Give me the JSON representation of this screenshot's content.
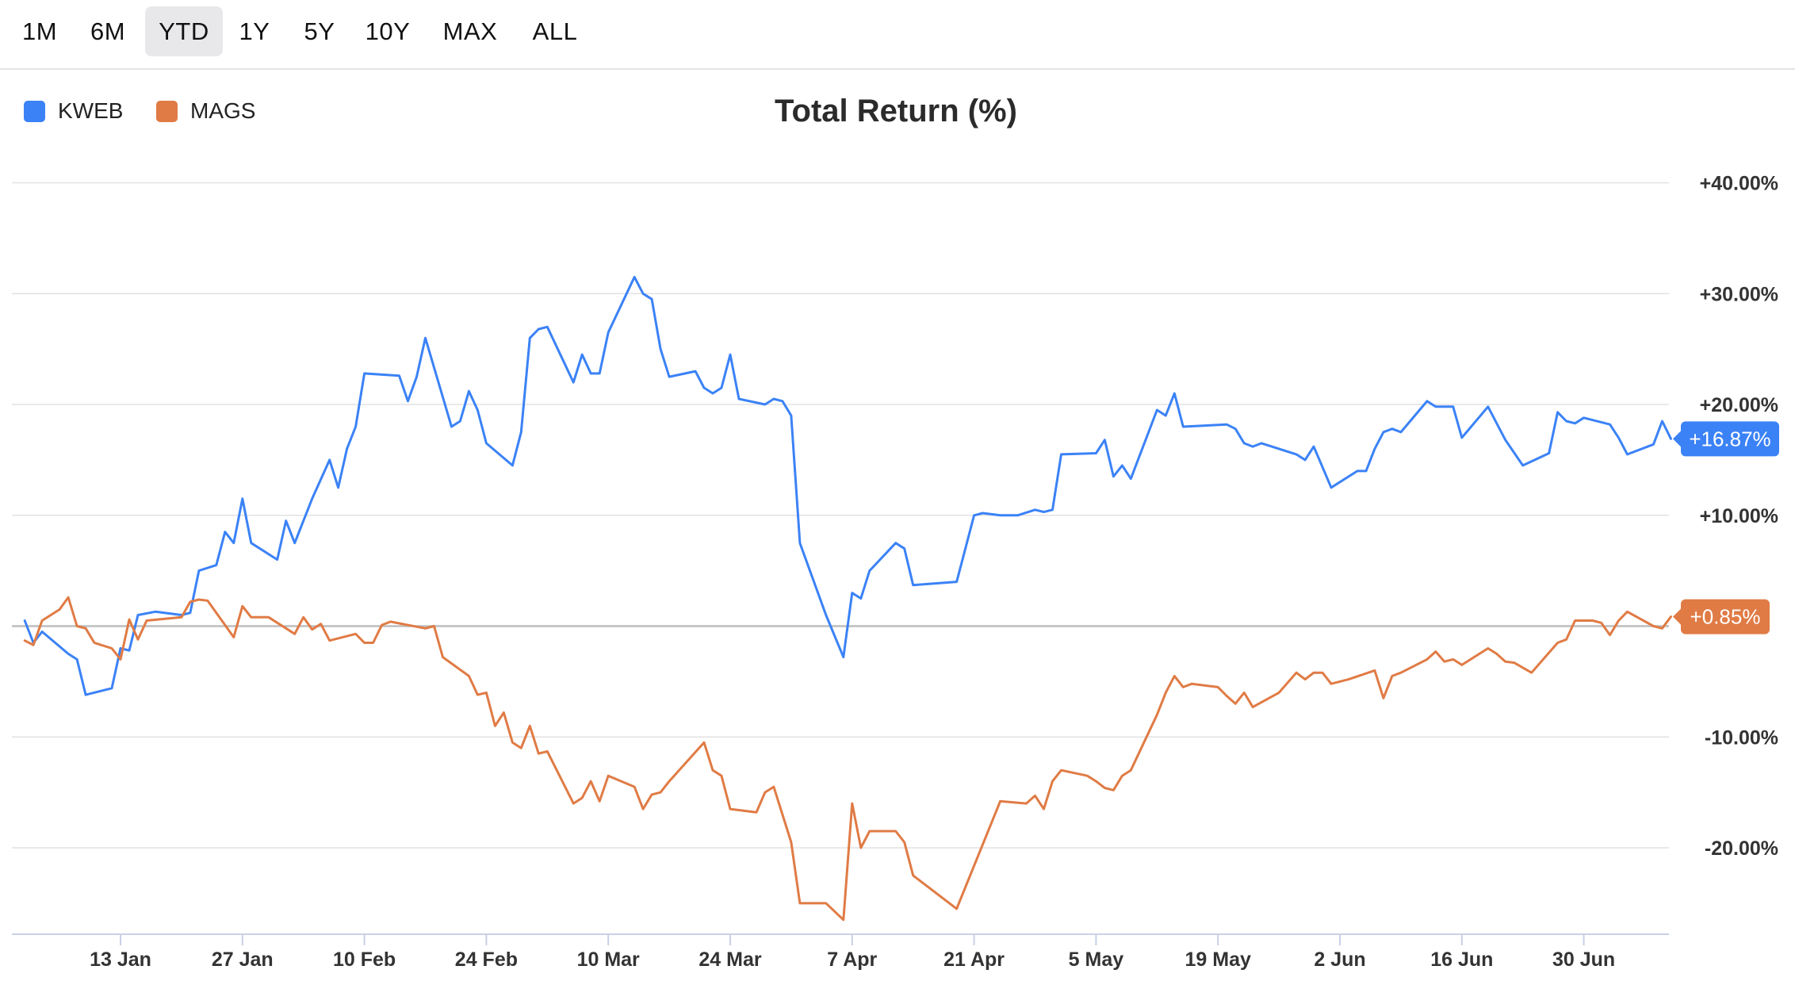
{
  "range_buttons": [
    {
      "label": "1M",
      "active": false
    },
    {
      "label": "6M",
      "active": false
    },
    {
      "label": "YTD",
      "active": true
    },
    {
      "label": "1Y",
      "active": false
    },
    {
      "label": "5Y",
      "active": false
    },
    {
      "label": "10Y",
      "active": false
    },
    {
      "label": "MAX",
      "active": false
    },
    {
      "label": "ALL",
      "active": false
    }
  ],
  "legend": [
    {
      "name": "KWEB",
      "color": "#3b82f6"
    },
    {
      "name": "MAGS",
      "color": "#e07b45"
    }
  ],
  "chart_data": {
    "type": "line",
    "title": "Total Return (%)",
    "xlabel": "",
    "ylabel": "",
    "ylim": [
      -27,
      40
    ],
    "y_ticks": [
      {
        "value": 40,
        "label": "+40.00%"
      },
      {
        "value": 30,
        "label": "+30.00%"
      },
      {
        "value": 20,
        "label": "+20.00%"
      },
      {
        "value": 10,
        "label": "+10.00%"
      },
      {
        "value": -10,
        "label": "-10.00%"
      },
      {
        "value": -20,
        "label": "-20.00%"
      }
    ],
    "x_range": [
      "2025-01-02",
      "2025-07-08"
    ],
    "x_ticks": [
      {
        "date": "2025-01-13",
        "label": "13 Jan"
      },
      {
        "date": "2025-01-27",
        "label": "27 Jan"
      },
      {
        "date": "2025-02-10",
        "label": "10 Feb"
      },
      {
        "date": "2025-02-24",
        "label": "24 Feb"
      },
      {
        "date": "2025-03-10",
        "label": "10 Mar"
      },
      {
        "date": "2025-03-24",
        "label": "24 Mar"
      },
      {
        "date": "2025-04-07",
        "label": "7 Apr"
      },
      {
        "date": "2025-04-21",
        "label": "21 Apr"
      },
      {
        "date": "2025-05-05",
        "label": "5 May"
      },
      {
        "date": "2025-05-19",
        "label": "19 May"
      },
      {
        "date": "2025-06-02",
        "label": "2 Jun"
      },
      {
        "date": "2025-06-16",
        "label": "16 Jun"
      },
      {
        "date": "2025-06-30",
        "label": "30 Jun"
      }
    ],
    "zero_line": true,
    "grid": true,
    "legend_position": "top-left",
    "series": [
      {
        "name": "KWEB",
        "color": "#3b82f6",
        "last_value_label": "+16.87%",
        "points": [
          [
            "2025-01-02",
            0.5
          ],
          [
            "2025-01-03",
            -1.5
          ],
          [
            "2025-01-04",
            -0.5
          ],
          [
            "2025-01-07",
            -2.5
          ],
          [
            "2025-01-08",
            -3.0
          ],
          [
            "2025-01-09",
            -6.2
          ],
          [
            "2025-01-12",
            -5.6
          ],
          [
            "2025-01-13",
            -2.0
          ],
          [
            "2025-01-14",
            -2.2
          ],
          [
            "2025-01-15",
            1.0
          ],
          [
            "2025-01-17",
            1.3
          ],
          [
            "2025-01-20",
            1.0
          ],
          [
            "2025-01-21",
            1.2
          ],
          [
            "2025-01-22",
            5.0
          ],
          [
            "2025-01-24",
            5.5
          ],
          [
            "2025-01-25",
            8.5
          ],
          [
            "2025-01-26",
            7.5
          ],
          [
            "2025-01-27",
            11.5
          ],
          [
            "2025-01-28",
            7.5
          ],
          [
            "2025-01-31",
            6.0
          ],
          [
            "2025-02-01",
            9.5
          ],
          [
            "2025-02-02",
            7.5
          ],
          [
            "2025-02-04",
            11.5
          ],
          [
            "2025-02-06",
            15.0
          ],
          [
            "2025-02-07",
            12.5
          ],
          [
            "2025-02-08",
            16.0
          ],
          [
            "2025-02-09",
            18.0
          ],
          [
            "2025-02-10",
            22.8
          ],
          [
            "2025-02-14",
            22.6
          ],
          [
            "2025-02-15",
            20.3
          ],
          [
            "2025-02-16",
            22.5
          ],
          [
            "2025-02-17",
            26.0
          ],
          [
            "2025-02-20",
            18.0
          ],
          [
            "2025-02-21",
            18.5
          ],
          [
            "2025-02-22",
            21.2
          ],
          [
            "2025-02-23",
            19.5
          ],
          [
            "2025-02-24",
            16.5
          ],
          [
            "2025-02-27",
            14.5
          ],
          [
            "2025-02-28",
            17.5
          ],
          [
            "2025-03-01",
            26.0
          ],
          [
            "2025-03-02",
            26.8
          ],
          [
            "2025-03-03",
            27.0
          ],
          [
            "2025-03-06",
            22.0
          ],
          [
            "2025-03-07",
            24.5
          ],
          [
            "2025-03-08",
            22.8
          ],
          [
            "2025-03-09",
            22.8
          ],
          [
            "2025-03-10",
            26.5
          ],
          [
            "2025-03-13",
            31.5
          ],
          [
            "2025-03-14",
            30.0
          ],
          [
            "2025-03-15",
            29.5
          ],
          [
            "2025-03-16",
            25.0
          ],
          [
            "2025-03-17",
            22.5
          ],
          [
            "2025-03-20",
            23.0
          ],
          [
            "2025-03-21",
            21.5
          ],
          [
            "2025-03-22",
            21.0
          ],
          [
            "2025-03-23",
            21.5
          ],
          [
            "2025-03-24",
            24.5
          ],
          [
            "2025-03-25",
            20.5
          ],
          [
            "2025-03-28",
            20.0
          ],
          [
            "2025-03-29",
            20.5
          ],
          [
            "2025-03-30",
            20.3
          ],
          [
            "2025-03-31",
            19.0
          ],
          [
            "2025-04-01",
            7.5
          ],
          [
            "2025-04-04",
            1.0
          ],
          [
            "2025-04-06",
            -2.8
          ],
          [
            "2025-04-07",
            3.0
          ],
          [
            "2025-04-08",
            2.5
          ],
          [
            "2025-04-09",
            5.0
          ],
          [
            "2025-04-12",
            7.5
          ],
          [
            "2025-04-13",
            7.0
          ],
          [
            "2025-04-14",
            3.7
          ],
          [
            "2025-04-19",
            4.0
          ],
          [
            "2025-04-20",
            7.0
          ],
          [
            "2025-04-21",
            10.0
          ],
          [
            "2025-04-22",
            10.2
          ],
          [
            "2025-04-24",
            10.0
          ],
          [
            "2025-04-26",
            10.0
          ],
          [
            "2025-04-28",
            10.5
          ],
          [
            "2025-04-29",
            10.3
          ],
          [
            "2025-04-30",
            10.5
          ],
          [
            "2025-05-01",
            15.5
          ],
          [
            "2025-05-05",
            15.6
          ],
          [
            "2025-05-06",
            16.8
          ],
          [
            "2025-05-07",
            13.5
          ],
          [
            "2025-05-08",
            14.5
          ],
          [
            "2025-05-09",
            13.3
          ],
          [
            "2025-05-12",
            19.5
          ],
          [
            "2025-05-13",
            19.0
          ],
          [
            "2025-05-14",
            21.0
          ],
          [
            "2025-05-15",
            18.0
          ],
          [
            "2025-05-20",
            18.2
          ],
          [
            "2025-05-21",
            17.8
          ],
          [
            "2025-05-22",
            16.5
          ],
          [
            "2025-05-23",
            16.2
          ],
          [
            "2025-05-24",
            16.5
          ],
          [
            "2025-05-28",
            15.5
          ],
          [
            "2025-05-29",
            15.0
          ],
          [
            "2025-05-30",
            16.2
          ],
          [
            "2025-06-01",
            12.5
          ],
          [
            "2025-06-04",
            14.0
          ],
          [
            "2025-06-05",
            14.0
          ],
          [
            "2025-06-06",
            16.0
          ],
          [
            "2025-06-07",
            17.5
          ],
          [
            "2025-06-08",
            17.8
          ],
          [
            "2025-06-09",
            17.5
          ],
          [
            "2025-06-12",
            20.3
          ],
          [
            "2025-06-13",
            19.8
          ],
          [
            "2025-06-15",
            19.8
          ],
          [
            "2025-06-16",
            17.0
          ],
          [
            "2025-06-19",
            19.8
          ],
          [
            "2025-06-21",
            16.8
          ],
          [
            "2025-06-23",
            14.5
          ],
          [
            "2025-06-26",
            15.6
          ],
          [
            "2025-06-27",
            19.3
          ],
          [
            "2025-06-28",
            18.5
          ],
          [
            "2025-06-29",
            18.3
          ],
          [
            "2025-06-30",
            18.8
          ],
          [
            "2025-07-03",
            18.2
          ],
          [
            "2025-07-04",
            17.0
          ],
          [
            "2025-07-05",
            15.5
          ],
          [
            "2025-07-08",
            16.4
          ],
          [
            "2025-07-09",
            18.5
          ],
          [
            "2025-07-10",
            16.9
          ]
        ]
      },
      {
        "name": "MAGS",
        "color": "#e07b45",
        "last_value_label": "+0.85%",
        "points": [
          [
            "2025-01-02",
            -1.3
          ],
          [
            "2025-01-03",
            -1.7
          ],
          [
            "2025-01-04",
            0.5
          ],
          [
            "2025-01-06",
            1.5
          ],
          [
            "2025-01-07",
            2.6
          ],
          [
            "2025-01-08",
            0.0
          ],
          [
            "2025-01-09",
            -0.2
          ],
          [
            "2025-01-10",
            -1.5
          ],
          [
            "2025-01-12",
            -2.0
          ],
          [
            "2025-01-13",
            -3.0
          ],
          [
            "2025-01-14",
            0.6
          ],
          [
            "2025-01-15",
            -1.2
          ],
          [
            "2025-01-16",
            0.5
          ],
          [
            "2025-01-20",
            0.8
          ],
          [
            "2025-01-21",
            2.2
          ],
          [
            "2025-01-22",
            2.4
          ],
          [
            "2025-01-23",
            2.3
          ],
          [
            "2025-01-26",
            -1.0
          ],
          [
            "2025-01-27",
            1.8
          ],
          [
            "2025-01-28",
            0.8
          ],
          [
            "2025-01-30",
            0.8
          ],
          [
            "2025-02-02",
            -0.7
          ],
          [
            "2025-02-03",
            0.8
          ],
          [
            "2025-02-04",
            -0.3
          ],
          [
            "2025-02-05",
            0.2
          ],
          [
            "2025-02-06",
            -1.3
          ],
          [
            "2025-02-09",
            -0.7
          ],
          [
            "2025-02-10",
            -1.5
          ],
          [
            "2025-02-11",
            -1.5
          ],
          [
            "2025-02-12",
            0.1
          ],
          [
            "2025-02-13",
            0.4
          ],
          [
            "2025-02-17",
            -0.2
          ],
          [
            "2025-02-18",
            0.0
          ],
          [
            "2025-02-19",
            -2.8
          ],
          [
            "2025-02-22",
            -4.5
          ],
          [
            "2025-02-23",
            -6.2
          ],
          [
            "2025-02-24",
            -6.0
          ],
          [
            "2025-02-25",
            -9.0
          ],
          [
            "2025-02-26",
            -7.8
          ],
          [
            "2025-02-27",
            -10.5
          ],
          [
            "2025-02-28",
            -11.0
          ],
          [
            "2025-03-01",
            -9.0
          ],
          [
            "2025-03-02",
            -11.5
          ],
          [
            "2025-03-03",
            -11.3
          ],
          [
            "2025-03-06",
            -16.0
          ],
          [
            "2025-03-07",
            -15.5
          ],
          [
            "2025-03-08",
            -14.0
          ],
          [
            "2025-03-09",
            -15.8
          ],
          [
            "2025-03-10",
            -13.5
          ],
          [
            "2025-03-13",
            -14.5
          ],
          [
            "2025-03-14",
            -16.5
          ],
          [
            "2025-03-15",
            -15.2
          ],
          [
            "2025-03-16",
            -15.0
          ],
          [
            "2025-03-17",
            -14.0
          ],
          [
            "2025-03-21",
            -10.5
          ],
          [
            "2025-03-22",
            -13.0
          ],
          [
            "2025-03-23",
            -13.5
          ],
          [
            "2025-03-24",
            -16.5
          ],
          [
            "2025-03-27",
            -16.8
          ],
          [
            "2025-03-28",
            -15.0
          ],
          [
            "2025-03-29",
            -14.5
          ],
          [
            "2025-03-31",
            -19.5
          ],
          [
            "2025-04-01",
            -25.0
          ],
          [
            "2025-04-04",
            -25.0
          ],
          [
            "2025-04-06",
            -26.5
          ],
          [
            "2025-04-07",
            -16.0
          ],
          [
            "2025-04-08",
            -20.0
          ],
          [
            "2025-04-09",
            -18.5
          ],
          [
            "2025-04-12",
            -18.5
          ],
          [
            "2025-04-13",
            -19.5
          ],
          [
            "2025-04-14",
            -22.5
          ],
          [
            "2025-04-19",
            -25.5
          ],
          [
            "2025-04-24",
            -15.8
          ],
          [
            "2025-04-27",
            -16.0
          ],
          [
            "2025-04-28",
            -15.3
          ],
          [
            "2025-04-29",
            -16.5
          ],
          [
            "2025-04-30",
            -14.0
          ],
          [
            "2025-05-01",
            -13.0
          ],
          [
            "2025-05-04",
            -13.5
          ],
          [
            "2025-05-05",
            -14.0
          ],
          [
            "2025-05-06",
            -14.6
          ],
          [
            "2025-05-07",
            -14.8
          ],
          [
            "2025-05-08",
            -13.5
          ],
          [
            "2025-05-09",
            -13.0
          ],
          [
            "2025-05-12",
            -8.0
          ],
          [
            "2025-05-13",
            -6.0
          ],
          [
            "2025-05-14",
            -4.5
          ],
          [
            "2025-05-15",
            -5.5
          ],
          [
            "2025-05-16",
            -5.2
          ],
          [
            "2025-05-19",
            -5.5
          ],
          [
            "2025-05-20",
            -6.3
          ],
          [
            "2025-05-21",
            -7.0
          ],
          [
            "2025-05-22",
            -6.0
          ],
          [
            "2025-05-23",
            -7.3
          ],
          [
            "2025-05-26",
            -6.0
          ],
          [
            "2025-05-28",
            -4.2
          ],
          [
            "2025-05-29",
            -4.8
          ],
          [
            "2025-05-30",
            -4.2
          ],
          [
            "2025-05-31",
            -4.2
          ],
          [
            "2025-06-01",
            -5.2
          ],
          [
            "2025-06-03",
            -4.8
          ],
          [
            "2025-06-06",
            -4.0
          ],
          [
            "2025-06-07",
            -6.5
          ],
          [
            "2025-06-08",
            -4.5
          ],
          [
            "2025-06-09",
            -4.2
          ],
          [
            "2025-06-12",
            -3.0
          ],
          [
            "2025-06-13",
            -2.3
          ],
          [
            "2025-06-14",
            -3.2
          ],
          [
            "2025-06-15",
            -3.0
          ],
          [
            "2025-06-16",
            -3.5
          ],
          [
            "2025-06-19",
            -2.0
          ],
          [
            "2025-06-20",
            -2.5
          ],
          [
            "2025-06-21",
            -3.2
          ],
          [
            "2025-06-22",
            -3.3
          ],
          [
            "2025-06-24",
            -4.2
          ],
          [
            "2025-06-27",
            -1.5
          ],
          [
            "2025-06-28",
            -1.2
          ],
          [
            "2025-06-29",
            0.5
          ],
          [
            "2025-07-01",
            0.5
          ],
          [
            "2025-07-02",
            0.3
          ],
          [
            "2025-07-03",
            -0.8
          ],
          [
            "2025-07-04",
            0.5
          ],
          [
            "2025-07-05",
            1.3
          ],
          [
            "2025-07-08",
            0.0
          ],
          [
            "2025-07-09",
            -0.2
          ],
          [
            "2025-07-10",
            0.85
          ]
        ]
      }
    ]
  }
}
